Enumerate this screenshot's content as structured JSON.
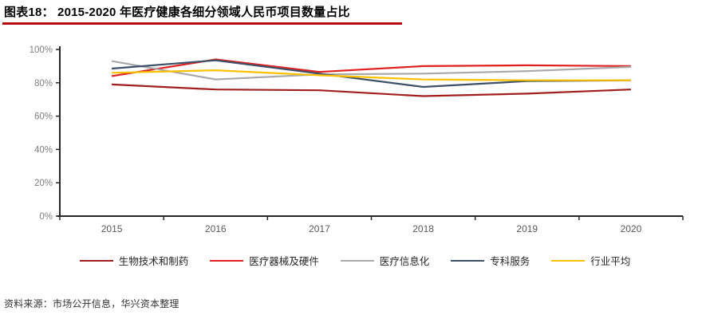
{
  "header": {
    "title": "图表18： 2015-2020 年医疗健康各细分领域人民币项目数量占比",
    "underline_color": "#b50d0d"
  },
  "chart_data": {
    "type": "line",
    "categories": [
      "2015",
      "2016",
      "2017",
      "2018",
      "2019",
      "2020"
    ],
    "series": [
      {
        "name": "生物技术和制药",
        "color": "#a21e1e",
        "values": [
          79,
          76,
          75.5,
          72,
          73.5,
          76
        ]
      },
      {
        "name": "医疗器械及硬件",
        "color": "#e02020",
        "values": [
          84,
          94,
          86.5,
          90,
          90.5,
          90
        ]
      },
      {
        "name": "医疗信息化",
        "color": "#a9a9a9",
        "values": [
          93,
          82,
          85,
          85.5,
          87,
          89.5
        ]
      },
      {
        "name": "专科服务",
        "color": "#3e5067",
        "values": [
          88.5,
          93.5,
          85.5,
          77.5,
          81,
          81.5
        ]
      },
      {
        "name": "行业平均",
        "color": "#ffc000",
        "values": [
          86,
          87.5,
          84.5,
          82,
          81.5,
          81.5
        ]
      }
    ],
    "title": "2015-2020 年医疗健康各细分领域人民币项目数量占比",
    "xlabel": "",
    "ylabel": "",
    "ylim": [
      0,
      100
    ],
    "y_ticks": [
      "0%",
      "20%",
      "40%",
      "60%",
      "80%",
      "100%"
    ],
    "grid": false,
    "legend_position": "bottom"
  },
  "footer": {
    "source": "资料来源：市场公开信息，华兴资本整理"
  }
}
